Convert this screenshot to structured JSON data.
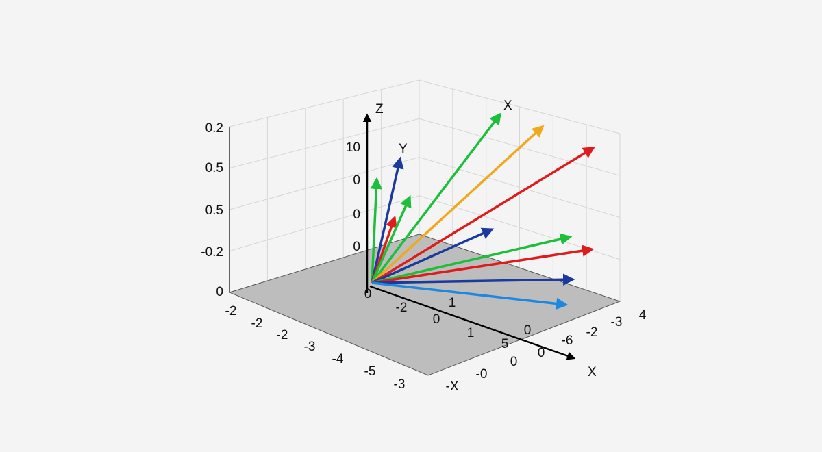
{
  "axis_names": {
    "z": "Z",
    "y": "Y",
    "x_top": "X",
    "x_bottom": "X"
  },
  "left_axis_labels": [
    "0.2",
    "0.5",
    "0.5",
    "-0.2",
    "0"
  ],
  "inner_labels": [
    "10",
    "0",
    "0",
    "0",
    "0",
    "-2",
    "1",
    "0",
    "1",
    "5"
  ],
  "front_left_labels": [
    "-2",
    "-2",
    "-2",
    "-3",
    "-4",
    "-5",
    "-3",
    "-X",
    "-0",
    "0",
    "0"
  ],
  "front_right_labels": [
    "4",
    "-3",
    "-2",
    "-6",
    "0"
  ]
}
